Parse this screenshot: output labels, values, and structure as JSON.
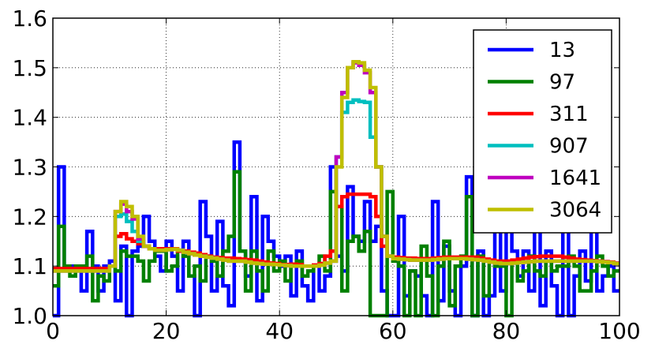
{
  "chart_data": {
    "type": "line",
    "title": "",
    "xlabel": "",
    "ylabel": "",
    "xlim": [
      0,
      100
    ],
    "ylim": [
      1.0,
      1.6
    ],
    "grid": true,
    "legend_placement": "top-right",
    "step": true,
    "x": [
      0,
      1,
      2,
      3,
      4,
      5,
      6,
      7,
      8,
      9,
      10,
      11,
      12,
      13,
      14,
      15,
      16,
      17,
      18,
      19,
      20,
      21,
      22,
      23,
      24,
      25,
      26,
      27,
      28,
      29,
      30,
      31,
      32,
      33,
      34,
      35,
      36,
      37,
      38,
      39,
      40,
      41,
      42,
      43,
      44,
      45,
      46,
      47,
      48,
      49,
      50,
      51,
      52,
      53,
      54,
      55,
      56,
      57,
      58,
      59,
      60,
      61,
      62,
      63,
      64,
      65,
      66,
      67,
      68,
      69,
      70,
      71,
      72,
      73,
      74,
      75,
      76,
      77,
      78,
      79,
      80,
      81,
      82,
      83,
      84,
      85,
      86,
      87,
      88,
      89,
      90,
      91,
      92,
      93,
      94,
      95,
      96,
      97,
      98,
      99
    ],
    "x_ticks": [
      "0",
      "20",
      "40",
      "60",
      "80",
      "100"
    ],
    "y_ticks": [
      "1.0",
      "1.1",
      "1.2",
      "1.3",
      "1.4",
      "1.5",
      "1.6"
    ],
    "series": [
      {
        "name": "13",
        "color": "#0000ff",
        "values": [
          1.0,
          1.3,
          1.1,
          1.1,
          1.1,
          1.05,
          1.17,
          1.1,
          1.05,
          1.1,
          1.11,
          1.03,
          1.14,
          1.0,
          1.13,
          1.14,
          1.2,
          1.15,
          1.12,
          1.09,
          1.15,
          1.12,
          1.05,
          1.15,
          1.08,
          1.0,
          1.23,
          1.16,
          1.05,
          1.19,
          1.06,
          1.02,
          1.35,
          1.13,
          1.08,
          1.24,
          1.03,
          1.2,
          1.15,
          1.12,
          1.1,
          1.12,
          1.04,
          1.13,
          1.06,
          1.03,
          1.1,
          1.05,
          1.08,
          1.3,
          1.12,
          1.09,
          1.26,
          1.16,
          1.15,
          1.23,
          1.15,
          1.18,
          1.05,
          1.0,
          1.0,
          1.2,
          1.04,
          1.09,
          1.08,
          1.04,
          1.0,
          1.23,
          1.03,
          1.14,
          1.05,
          1.0,
          1.1,
          1.28,
          1.0,
          1.13,
          1.0,
          1.04,
          1.18,
          1.05,
          1.22,
          1.13,
          1.08,
          1.13,
          1.05,
          1.18,
          1.02,
          1.13,
          1.06,
          1.0,
          1.2,
          1.0,
          1.08,
          1.13,
          1.07,
          1.2,
          1.05,
          1.08,
          1.1,
          1.05
        ]
      },
      {
        "name": "97",
        "color": "#008000",
        "values": [
          1.06,
          1.18,
          1.1,
          1.08,
          1.1,
          1.1,
          1.12,
          1.03,
          1.08,
          1.07,
          1.1,
          1.09,
          1.13,
          1.12,
          1.12,
          1.11,
          1.07,
          1.11,
          1.13,
          1.13,
          1.09,
          1.1,
          1.13,
          1.12,
          1.08,
          1.1,
          1.07,
          1.12,
          1.11,
          1.08,
          1.13,
          1.16,
          1.29,
          1.13,
          1.05,
          1.13,
          1.09,
          1.05,
          1.13,
          1.09,
          1.11,
          1.07,
          1.1,
          1.11,
          1.08,
          1.09,
          1.1,
          1.12,
          1.09,
          1.25,
          1.22,
          1.05,
          1.15,
          1.16,
          1.13,
          1.17,
          1.0,
          1.0,
          1.0,
          1.25,
          1.11,
          1.1,
          1.0,
          1.09,
          1.0,
          1.14,
          1.08,
          1.0,
          1.1,
          1.15,
          1.02,
          1.1,
          1.12,
          1.24,
          1.0,
          1.12,
          1.04,
          1.11,
          1.1,
          1.1,
          1.0,
          1.11,
          1.07,
          1.09,
          1.12,
          1.09,
          1.08,
          1.11,
          1.09,
          1.1,
          1.1,
          1.12,
          1.1,
          1.05,
          1.05,
          1.09,
          1.12,
          1.1,
          1.08,
          1.09
        ]
      },
      {
        "name": "311",
        "color": "#ff0000",
        "values": [
          1.095,
          1.095,
          1.095,
          1.095,
          1.095,
          1.095,
          1.095,
          1.095,
          1.095,
          1.095,
          1.1,
          1.16,
          1.165,
          1.155,
          1.15,
          1.145,
          1.14,
          1.135,
          1.135,
          1.135,
          1.135,
          1.135,
          1.13,
          1.13,
          1.128,
          1.126,
          1.123,
          1.12,
          1.118,
          1.117,
          1.116,
          1.116,
          1.115,
          1.114,
          1.113,
          1.112,
          1.11,
          1.108,
          1.106,
          1.105,
          1.103,
          1.103,
          1.104,
          1.103,
          1.1,
          1.1,
          1.102,
          1.105,
          1.12,
          1.13,
          1.22,
          1.24,
          1.245,
          1.245,
          1.245,
          1.245,
          1.24,
          1.2,
          1.14,
          1.12,
          1.118,
          1.117,
          1.116,
          1.116,
          1.115,
          1.115,
          1.115,
          1.116,
          1.117,
          1.118,
          1.118,
          1.118,
          1.118,
          1.118,
          1.118,
          1.116,
          1.114,
          1.112,
          1.11,
          1.11,
          1.11,
          1.112,
          1.114,
          1.116,
          1.118,
          1.119,
          1.12,
          1.12,
          1.12,
          1.12,
          1.118,
          1.116,
          1.114,
          1.113,
          1.112,
          1.111,
          1.11,
          1.109,
          1.108,
          1.106
        ]
      },
      {
        "name": "907",
        "color": "#00bfbf",
        "values": [
          1.09,
          1.09,
          1.09,
          1.09,
          1.09,
          1.09,
          1.09,
          1.09,
          1.09,
          1.09,
          1.1,
          1.2,
          1.205,
          1.19,
          1.17,
          1.15,
          1.14,
          1.135,
          1.132,
          1.132,
          1.133,
          1.134,
          1.132,
          1.128,
          1.125,
          1.122,
          1.12,
          1.118,
          1.116,
          1.114,
          1.112,
          1.11,
          1.11,
          1.11,
          1.108,
          1.106,
          1.105,
          1.104,
          1.104,
          1.103,
          1.102,
          1.101,
          1.1,
          1.1,
          1.1,
          1.1,
          1.1,
          1.102,
          1.106,
          1.11,
          1.32,
          1.41,
          1.43,
          1.435,
          1.432,
          1.43,
          1.36,
          1.3,
          1.16,
          1.12,
          1.115,
          1.114,
          1.113,
          1.112,
          1.112,
          1.112,
          1.112,
          1.113,
          1.114,
          1.115,
          1.115,
          1.115,
          1.115,
          1.114,
          1.113,
          1.112,
          1.11,
          1.108,
          1.106,
          1.105,
          1.105,
          1.106,
          1.107,
          1.108,
          1.109,
          1.11,
          1.11,
          1.11,
          1.11,
          1.11,
          1.11,
          1.11,
          1.11,
          1.11,
          1.11,
          1.11,
          1.109,
          1.108,
          1.107,
          1.105
        ]
      },
      {
        "name": "1641",
        "color": "#bf00bf",
        "values": [
          1.09,
          1.09,
          1.09,
          1.09,
          1.09,
          1.09,
          1.09,
          1.09,
          1.09,
          1.09,
          1.1,
          1.21,
          1.225,
          1.21,
          1.195,
          1.155,
          1.14,
          1.135,
          1.132,
          1.132,
          1.133,
          1.134,
          1.132,
          1.128,
          1.125,
          1.122,
          1.12,
          1.118,
          1.116,
          1.114,
          1.112,
          1.11,
          1.11,
          1.11,
          1.108,
          1.106,
          1.105,
          1.104,
          1.104,
          1.103,
          1.102,
          1.101,
          1.1,
          1.1,
          1.1,
          1.1,
          1.1,
          1.102,
          1.106,
          1.11,
          1.32,
          1.45,
          1.5,
          1.51,
          1.505,
          1.49,
          1.45,
          1.3,
          1.16,
          1.12,
          1.115,
          1.114,
          1.113,
          1.112,
          1.112,
          1.112,
          1.112,
          1.113,
          1.114,
          1.115,
          1.115,
          1.115,
          1.115,
          1.114,
          1.113,
          1.112,
          1.11,
          1.108,
          1.106,
          1.105,
          1.105,
          1.106,
          1.107,
          1.108,
          1.109,
          1.11,
          1.11,
          1.11,
          1.11,
          1.11,
          1.11,
          1.11,
          1.11,
          1.11,
          1.11,
          1.11,
          1.109,
          1.108,
          1.107,
          1.105
        ]
      },
      {
        "name": "3064",
        "color": "#bfbf00",
        "values": [
          1.09,
          1.09,
          1.09,
          1.09,
          1.09,
          1.09,
          1.09,
          1.09,
          1.09,
          1.09,
          1.1,
          1.21,
          1.23,
          1.22,
          1.2,
          1.16,
          1.14,
          1.135,
          1.132,
          1.132,
          1.133,
          1.134,
          1.132,
          1.128,
          1.125,
          1.122,
          1.12,
          1.118,
          1.116,
          1.114,
          1.112,
          1.11,
          1.11,
          1.11,
          1.108,
          1.106,
          1.105,
          1.104,
          1.104,
          1.103,
          1.102,
          1.101,
          1.1,
          1.1,
          1.1,
          1.1,
          1.1,
          1.102,
          1.106,
          1.11,
          1.3,
          1.44,
          1.5,
          1.512,
          1.51,
          1.495,
          1.46,
          1.3,
          1.16,
          1.12,
          1.115,
          1.114,
          1.113,
          1.112,
          1.112,
          1.112,
          1.112,
          1.113,
          1.114,
          1.115,
          1.115,
          1.115,
          1.115,
          1.114,
          1.113,
          1.112,
          1.11,
          1.108,
          1.106,
          1.105,
          1.105,
          1.106,
          1.107,
          1.108,
          1.109,
          1.11,
          1.11,
          1.11,
          1.11,
          1.11,
          1.11,
          1.11,
          1.11,
          1.11,
          1.11,
          1.11,
          1.109,
          1.108,
          1.107,
          1.105
        ]
      }
    ]
  }
}
